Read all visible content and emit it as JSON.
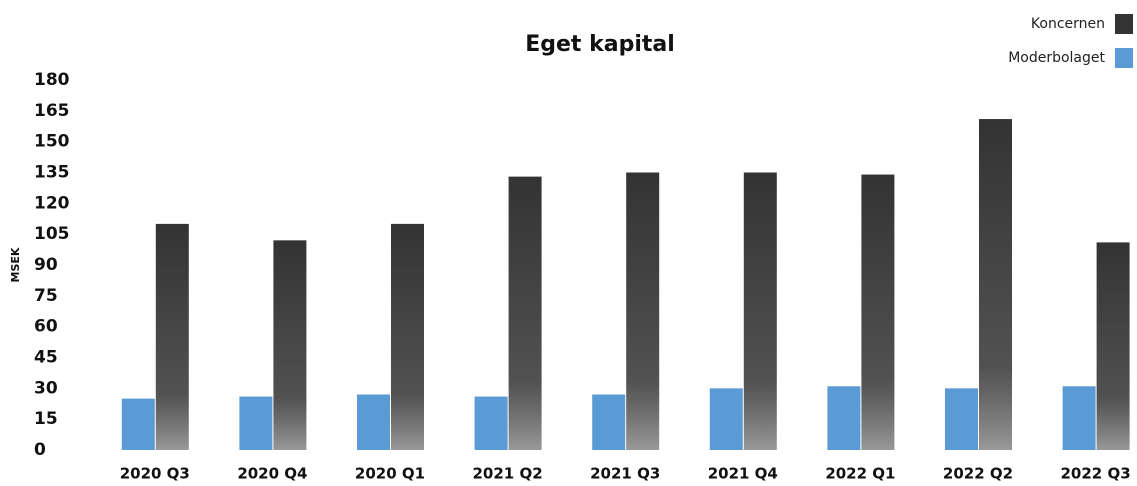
{
  "chart_data": {
    "type": "bar",
    "title": "Eget kapital",
    "y_label": "MSEK",
    "categories": [
      "2020 Q3",
      "2020 Q4",
      "2020 Q1",
      "2021 Q2",
      "2021 Q3",
      "2021 Q4",
      "2022 Q1",
      "2022 Q2",
      "2022 Q3"
    ],
    "series": [
      {
        "name": "Moderbolaget",
        "color": "#5b9bd5",
        "values": [
          25,
          26,
          27,
          26,
          27,
          30,
          31,
          30,
          31
        ]
      },
      {
        "name": "Koncernen",
        "color": "#333333",
        "values": [
          110,
          102,
          110,
          133,
          135,
          135,
          134,
          161,
          101
        ]
      }
    ],
    "ylim": [
      0,
      180
    ],
    "yticks": [
      0,
      15,
      30,
      45,
      60,
      75,
      90,
      105,
      120,
      135,
      150,
      165,
      180
    ],
    "grid": false
  }
}
